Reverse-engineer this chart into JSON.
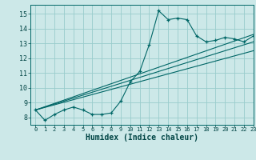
{
  "xlabel": "Humidex (Indice chaleur)",
  "bg_color": "#cce8e8",
  "grid_color": "#99cccc",
  "line_color": "#006666",
  "marker": "+",
  "xlim": [
    -0.5,
    23
  ],
  "ylim": [
    7.5,
    15.6
  ],
  "xtick_vals": [
    0,
    1,
    2,
    3,
    4,
    5,
    6,
    7,
    8,
    9,
    10,
    11,
    12,
    13,
    14,
    15,
    16,
    17,
    18,
    19,
    20,
    21,
    22,
    23
  ],
  "ytick_vals": [
    8,
    9,
    10,
    11,
    12,
    13,
    14,
    15
  ],
  "main_x": [
    0,
    1,
    2,
    3,
    4,
    5,
    6,
    7,
    8,
    9,
    10,
    11,
    12,
    13,
    14,
    15,
    16,
    17,
    18,
    19,
    20,
    21,
    22,
    23
  ],
  "main_y": [
    8.5,
    7.8,
    8.2,
    8.5,
    8.7,
    8.5,
    8.2,
    8.2,
    8.3,
    9.1,
    10.4,
    11.1,
    12.9,
    15.2,
    14.6,
    14.7,
    14.6,
    13.5,
    13.1,
    13.2,
    13.4,
    13.3,
    13.1,
    13.5
  ],
  "line1_x": [
    0,
    23
  ],
  "line1_y": [
    8.5,
    13.1
  ],
  "line2_x": [
    0,
    23
  ],
  "line2_y": [
    8.5,
    12.5
  ],
  "line3_x": [
    0,
    23
  ],
  "line3_y": [
    8.5,
    13.6
  ],
  "xlabel_fontsize": 7,
  "tick_fontsize": 5,
  "xlabel_bold": true
}
